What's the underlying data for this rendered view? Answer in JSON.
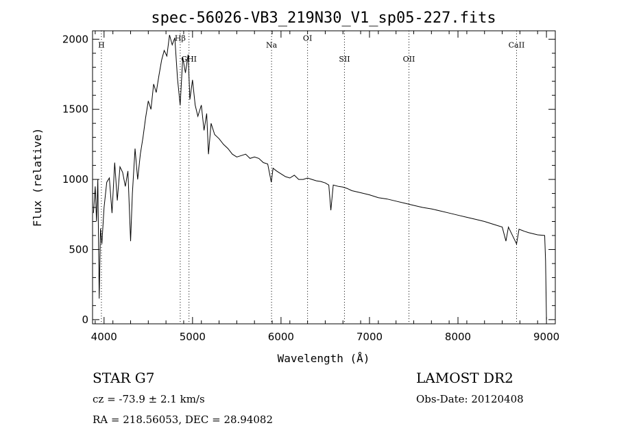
{
  "chart_data": {
    "type": "line",
    "title": "spec-56026-VB3_219N30_V1_sp05-227.fits",
    "xlabel": "Wavelength (Å)",
    "ylabel": "Flux (relative)",
    "xlim": [
      3870,
      9100
    ],
    "ylim": [
      -30,
      2060
    ],
    "xticks": [
      4000,
      5000,
      6000,
      7000,
      8000,
      9000
    ],
    "yticks": [
      0,
      500,
      1000,
      1500,
      2000
    ],
    "grid": false,
    "series": [
      {
        "color": "#000000",
        "points": [
          [
            3880,
            760
          ],
          [
            3900,
            950
          ],
          [
            3915,
            700
          ],
          [
            3930,
            1000
          ],
          [
            3945,
            150
          ],
          [
            3960,
            650
          ],
          [
            3975,
            540
          ],
          [
            4000,
            800
          ],
          [
            4030,
            980
          ],
          [
            4060,
            1010
          ],
          [
            4090,
            760
          ],
          [
            4120,
            1120
          ],
          [
            4150,
            850
          ],
          [
            4180,
            1090
          ],
          [
            4210,
            1050
          ],
          [
            4240,
            950
          ],
          [
            4270,
            1060
          ],
          [
            4300,
            560
          ],
          [
            4320,
            900
          ],
          [
            4350,
            1220
          ],
          [
            4380,
            1000
          ],
          [
            4410,
            1180
          ],
          [
            4440,
            1300
          ],
          [
            4470,
            1440
          ],
          [
            4500,
            1560
          ],
          [
            4530,
            1500
          ],
          [
            4560,
            1680
          ],
          [
            4590,
            1620
          ],
          [
            4620,
            1740
          ],
          [
            4650,
            1850
          ],
          [
            4680,
            1920
          ],
          [
            4710,
            1880
          ],
          [
            4740,
            2030
          ],
          [
            4770,
            1960
          ],
          [
            4800,
            2010
          ],
          [
            4830,
            1720
          ],
          [
            4860,
            1530
          ],
          [
            4890,
            1870
          ],
          [
            4920,
            1760
          ],
          [
            4950,
            1890
          ],
          [
            4970,
            1570
          ],
          [
            5000,
            1710
          ],
          [
            5030,
            1530
          ],
          [
            5060,
            1450
          ],
          [
            5100,
            1530
          ],
          [
            5130,
            1350
          ],
          [
            5160,
            1470
          ],
          [
            5180,
            1180
          ],
          [
            5210,
            1400
          ],
          [
            5250,
            1320
          ],
          [
            5300,
            1290
          ],
          [
            5350,
            1250
          ],
          [
            5400,
            1220
          ],
          [
            5450,
            1180
          ],
          [
            5500,
            1160
          ],
          [
            5550,
            1170
          ],
          [
            5600,
            1180
          ],
          [
            5650,
            1150
          ],
          [
            5700,
            1160
          ],
          [
            5750,
            1150
          ],
          [
            5800,
            1120
          ],
          [
            5850,
            1110
          ],
          [
            5890,
            980
          ],
          [
            5910,
            1080
          ],
          [
            5950,
            1060
          ],
          [
            6000,
            1040
          ],
          [
            6050,
            1020
          ],
          [
            6100,
            1010
          ],
          [
            6150,
            1030
          ],
          [
            6200,
            1000
          ],
          [
            6250,
            1000
          ],
          [
            6300,
            1010
          ],
          [
            6350,
            1000
          ],
          [
            6400,
            990
          ],
          [
            6450,
            985
          ],
          [
            6500,
            975
          ],
          [
            6540,
            960
          ],
          [
            6563,
            780
          ],
          [
            6590,
            960
          ],
          [
            6650,
            950
          ],
          [
            6700,
            945
          ],
          [
            6750,
            935
          ],
          [
            6800,
            920
          ],
          [
            6900,
            905
          ],
          [
            7000,
            890
          ],
          [
            7100,
            870
          ],
          [
            7200,
            860
          ],
          [
            7300,
            845
          ],
          [
            7400,
            830
          ],
          [
            7500,
            815
          ],
          [
            7600,
            800
          ],
          [
            7700,
            790
          ],
          [
            7800,
            775
          ],
          [
            7900,
            760
          ],
          [
            8000,
            745
          ],
          [
            8100,
            730
          ],
          [
            8200,
            715
          ],
          [
            8300,
            700
          ],
          [
            8400,
            680
          ],
          [
            8500,
            660
          ],
          [
            8542,
            560
          ],
          [
            8570,
            660
          ],
          [
            8662,
            540
          ],
          [
            8690,
            645
          ],
          [
            8750,
            630
          ],
          [
            8800,
            620
          ],
          [
            8900,
            605
          ],
          [
            8980,
            600
          ],
          [
            8990,
            420
          ],
          [
            9000,
            0
          ]
        ]
      }
    ],
    "lines": [
      {
        "label": "H",
        "x": 3970,
        "label_y": 1940
      },
      {
        "label": "Hβ",
        "x": 4861,
        "label_y": 1990
      },
      {
        "label": "GHI",
        "x": 4960,
        "label_y": 1840
      },
      {
        "label": "Na",
        "x": 5893,
        "label_y": 1940
      },
      {
        "label": "OI",
        "x": 6300,
        "label_y": 1990
      },
      {
        "label": "SII",
        "x": 6717,
        "label_y": 1840
      },
      {
        "label": "OII",
        "x": 7446,
        "label_y": 1840
      },
      {
        "label": "CaII",
        "x": 8662,
        "label_y": 1940
      }
    ]
  },
  "info": {
    "object": "STAR    G7",
    "survey": "LAMOST  DR2",
    "cz": "cz = -73.9 ± 2.1 km/s",
    "obs_date": "Obs-Date: 20120408",
    "radec": "RA = 218.56053, DEC =  28.94082"
  }
}
